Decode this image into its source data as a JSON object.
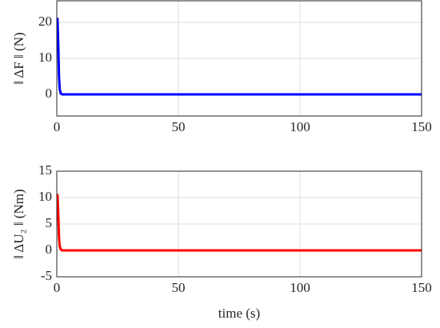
{
  "chart_data": [
    {
      "type": "line",
      "ylabel": "‖ ΔF ‖ (N)",
      "x": [
        0,
        0.3,
        0.6,
        0.9,
        1.2,
        1.6,
        2.2,
        150
      ],
      "series": [
        {
          "color": "#0000ff",
          "values": [
            21,
            21,
            14,
            5,
            1.5,
            0.3,
            0,
            0
          ]
        }
      ],
      "xlim": [
        0,
        150
      ],
      "xticks": [
        0,
        50,
        100,
        150
      ],
      "ylim": [
        -6,
        26
      ],
      "yticks": [
        0,
        10,
        20
      ],
      "grid": true
    },
    {
      "type": "line",
      "ylabel": "‖ ΔU₂ ‖ (Nm)",
      "xlabel": "time (s)",
      "x": [
        0,
        0.3,
        0.6,
        0.9,
        1.2,
        1.6,
        2.2,
        150
      ],
      "series": [
        {
          "color": "#ff0000",
          "values": [
            10.5,
            10.5,
            7,
            2.5,
            0.8,
            0.2,
            0,
            0
          ]
        }
      ],
      "xlim": [
        0,
        150
      ],
      "xticks": [
        0,
        50,
        100,
        150
      ],
      "ylim": [
        -5,
        15
      ],
      "yticks": [
        -5,
        0,
        5,
        10,
        15
      ],
      "grid": true
    }
  ]
}
